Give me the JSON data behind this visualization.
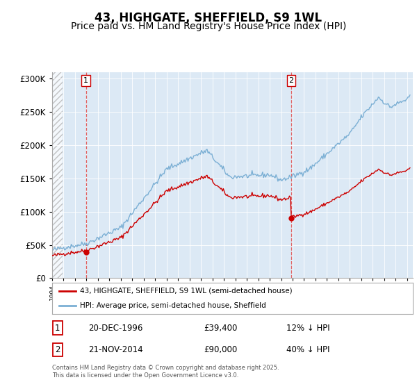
{
  "title": "43, HIGHGATE, SHEFFIELD, S9 1WL",
  "subtitle": "Price paid vs. HM Land Registry's House Price Index (HPI)",
  "ylim": [
    0,
    310000
  ],
  "yticks": [
    0,
    50000,
    100000,
    150000,
    200000,
    250000,
    300000
  ],
  "x_start_year": 1994,
  "x_end_year": 2025,
  "legend_line1": "43, HIGHGATE, SHEFFIELD, S9 1WL (semi-detached house)",
  "legend_line2": "HPI: Average price, semi-detached house, Sheffield",
  "sale1_date": "20-DEC-1996",
  "sale1_price": 39400,
  "sale1_label": "12% ↓ HPI",
  "sale2_date": "21-NOV-2014",
  "sale2_price": 90000,
  "sale2_label": "40% ↓ HPI",
  "sale1_x": 1996.95,
  "sale2_x": 2014.87,
  "red_line_color": "#cc0000",
  "blue_line_color": "#7bafd4",
  "dashed_line_color": "#e06060",
  "chart_bg_color": "#dce9f5",
  "background_color": "#ffffff",
  "watermark_text": "Contains HM Land Registry data © Crown copyright and database right 2025.\nThis data is licensed under the Open Government Licence v3.0.",
  "title_fontsize": 12,
  "subtitle_fontsize": 10
}
